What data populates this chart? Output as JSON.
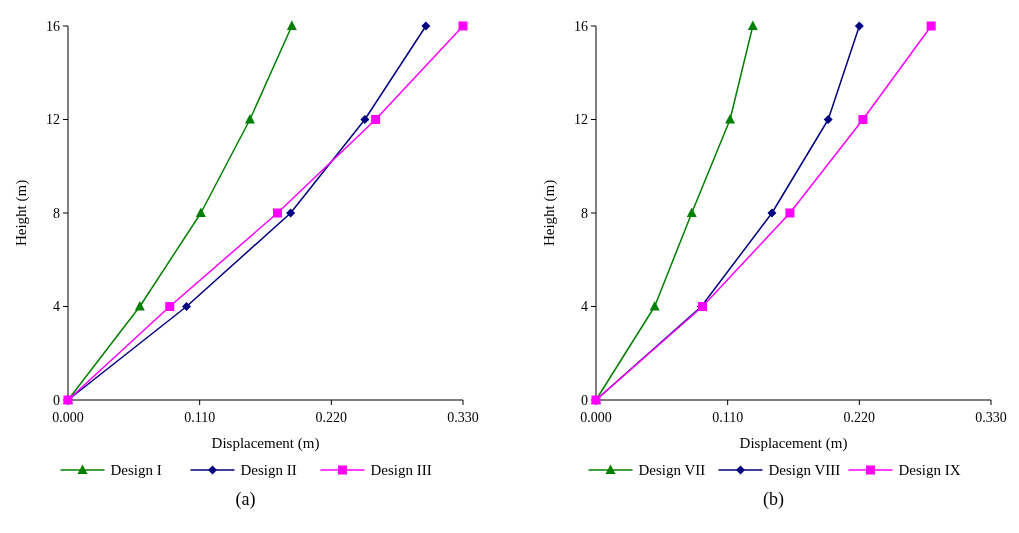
{
  "chart_data": [
    {
      "type": "line",
      "xlabel": "Displacement (m)",
      "ylabel": "Height (m)",
      "annotations": [
        "(a)"
      ],
      "xlim": [
        0,
        0.33
      ],
      "xticks": [
        {
          "value": 0,
          "label": "0.000"
        },
        {
          "value": 0.11,
          "label": "0.110"
        },
        {
          "value": 0.22,
          "label": "0.220"
        },
        {
          "value": 0.33,
          "label": "0.330"
        }
      ],
      "ylim": [
        0,
        16
      ],
      "yticks": [
        0,
        4,
        8,
        12,
        16
      ],
      "grid": false,
      "legend": "bottom",
      "series": [
        {
          "name": "Design I",
          "color": "#008000",
          "marker": "triangle",
          "x": [
            0,
            0.06,
            0.111,
            0.152,
            0.187
          ],
          "values": [
            0,
            4,
            8,
            12,
            16
          ]
        },
        {
          "name": "Design II",
          "color": "#000080",
          "marker": "diamond",
          "x": [
            0,
            0.099,
            0.186,
            0.248,
            0.299
          ],
          "values": [
            0,
            4,
            8,
            12,
            16
          ]
        },
        {
          "name": "Design III",
          "color": "#ff00ff",
          "marker": "square",
          "x": [
            0,
            0.085,
            0.175,
            0.257,
            0.33
          ],
          "values": [
            0,
            4,
            8,
            12,
            16
          ]
        }
      ]
    },
    {
      "type": "line",
      "xlabel": "Displacement (m)",
      "ylabel": "Height (m)",
      "annotations": [
        "(b)"
      ],
      "xlim": [
        0,
        0.33
      ],
      "xticks": [
        {
          "value": 0,
          "label": "0.000"
        },
        {
          "value": 0.11,
          "label": "0.110"
        },
        {
          "value": 0.22,
          "label": "0.220"
        },
        {
          "value": 0.33,
          "label": "0.330"
        }
      ],
      "ylim": [
        0,
        16
      ],
      "yticks": [
        0,
        4,
        8,
        12,
        16
      ],
      "grid": false,
      "legend": "bottom",
      "series": [
        {
          "name": "Design VII",
          "color": "#008000",
          "marker": "triangle",
          "x": [
            0,
            0.049,
            0.08,
            0.112,
            0.131
          ],
          "values": [
            0,
            4,
            8,
            12,
            16
          ]
        },
        {
          "name": "Design VIII",
          "color": "#000080",
          "marker": "diamond",
          "x": [
            0,
            0.088,
            0.147,
            0.194,
            0.22
          ],
          "values": [
            0,
            4,
            8,
            12,
            16
          ]
        },
        {
          "name": "Design IX",
          "color": "#ff00ff",
          "marker": "square",
          "x": [
            0,
            0.089,
            0.162,
            0.223,
            0.28
          ],
          "values": [
            0,
            4,
            8,
            12,
            16
          ]
        }
      ]
    }
  ]
}
